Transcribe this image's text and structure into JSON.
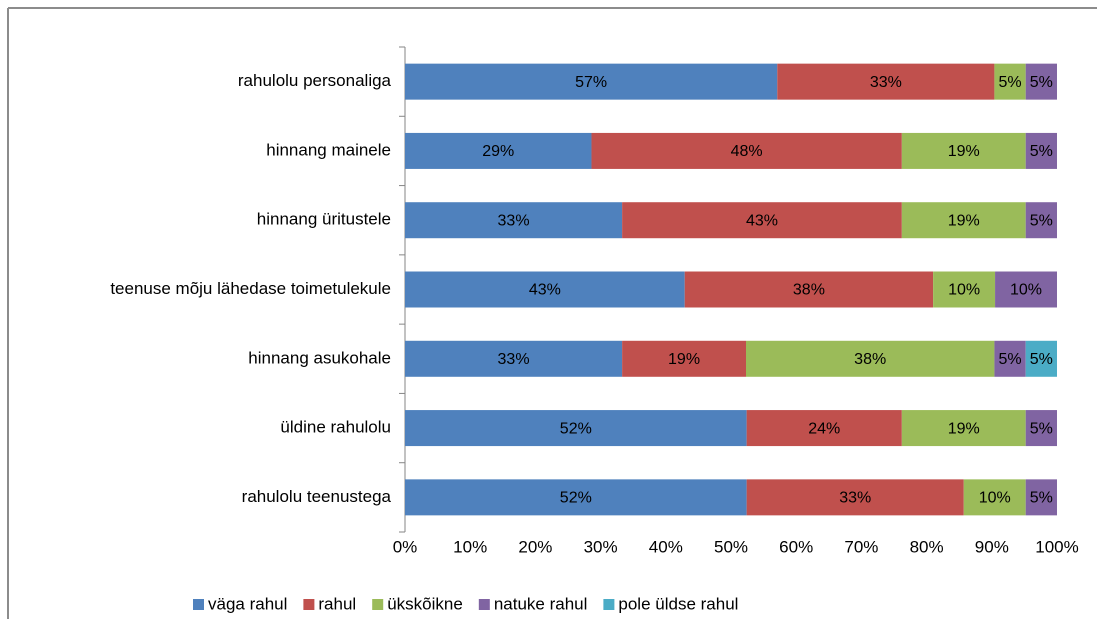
{
  "chart_data": {
    "type": "stacked-bar-horizontal",
    "categories": [
      "rahulolu personaliga",
      "hinnang mainele",
      "hinnang üritustele",
      "teenuse mõju lähedase toimetulekule",
      "hinnang asukohale",
      "üldine rahulolu",
      "rahulolu teenustega"
    ],
    "series": [
      {
        "name": "väga rahul",
        "color": "#4f81bd",
        "values": [
          57.1,
          28.6,
          33.3,
          42.9,
          33.3,
          52.4,
          52.4
        ],
        "value_labels": [
          "57%",
          "29%",
          "33%",
          "43%",
          "33%",
          "52%",
          "52%"
        ]
      },
      {
        "name": "rahul",
        "color": "#c0504d",
        "values": [
          33.3,
          47.6,
          42.9,
          38.1,
          19.0,
          23.8,
          33.3
        ],
        "value_labels": [
          "33%",
          "48%",
          "43%",
          "38%",
          "19%",
          "24%",
          "33%"
        ]
      },
      {
        "name": "ükskõikne",
        "color": "#9bbb59",
        "values": [
          4.8,
          19.0,
          19.0,
          9.5,
          38.1,
          19.0,
          9.5
        ],
        "value_labels": [
          "5%",
          "19%",
          "19%",
          "10%",
          "38%",
          "19%",
          "10%"
        ]
      },
      {
        "name": "natuke rahul",
        "color": "#8064a2",
        "values": [
          4.8,
          4.8,
          4.8,
          9.5,
          4.8,
          4.8,
          4.8
        ],
        "value_labels": [
          "5%",
          "5%",
          "5%",
          "10%",
          "5%",
          "5%",
          "5%"
        ]
      },
      {
        "name": "pole üldse rahul",
        "color": "#4bacc6",
        "values": [
          null,
          null,
          null,
          null,
          4.8,
          null,
          null
        ],
        "value_labels": [
          null,
          null,
          null,
          null,
          "5%",
          null,
          null
        ]
      }
    ],
    "xlim": [
      0,
      100
    ],
    "xticks": [
      {
        "value": 0,
        "label": "0%"
      },
      {
        "value": 10,
        "label": "10%"
      },
      {
        "value": 20,
        "label": "20%"
      },
      {
        "value": 30,
        "label": "30%"
      },
      {
        "value": 40,
        "label": "40%"
      },
      {
        "value": 50,
        "label": "50%"
      },
      {
        "value": 60,
        "label": "60%"
      },
      {
        "value": 70,
        "label": "70%"
      },
      {
        "value": 80,
        "label": "80%"
      },
      {
        "value": 90,
        "label": "90%"
      },
      {
        "value": 100,
        "label": "100%"
      }
    ],
    "legend": "bottom"
  }
}
